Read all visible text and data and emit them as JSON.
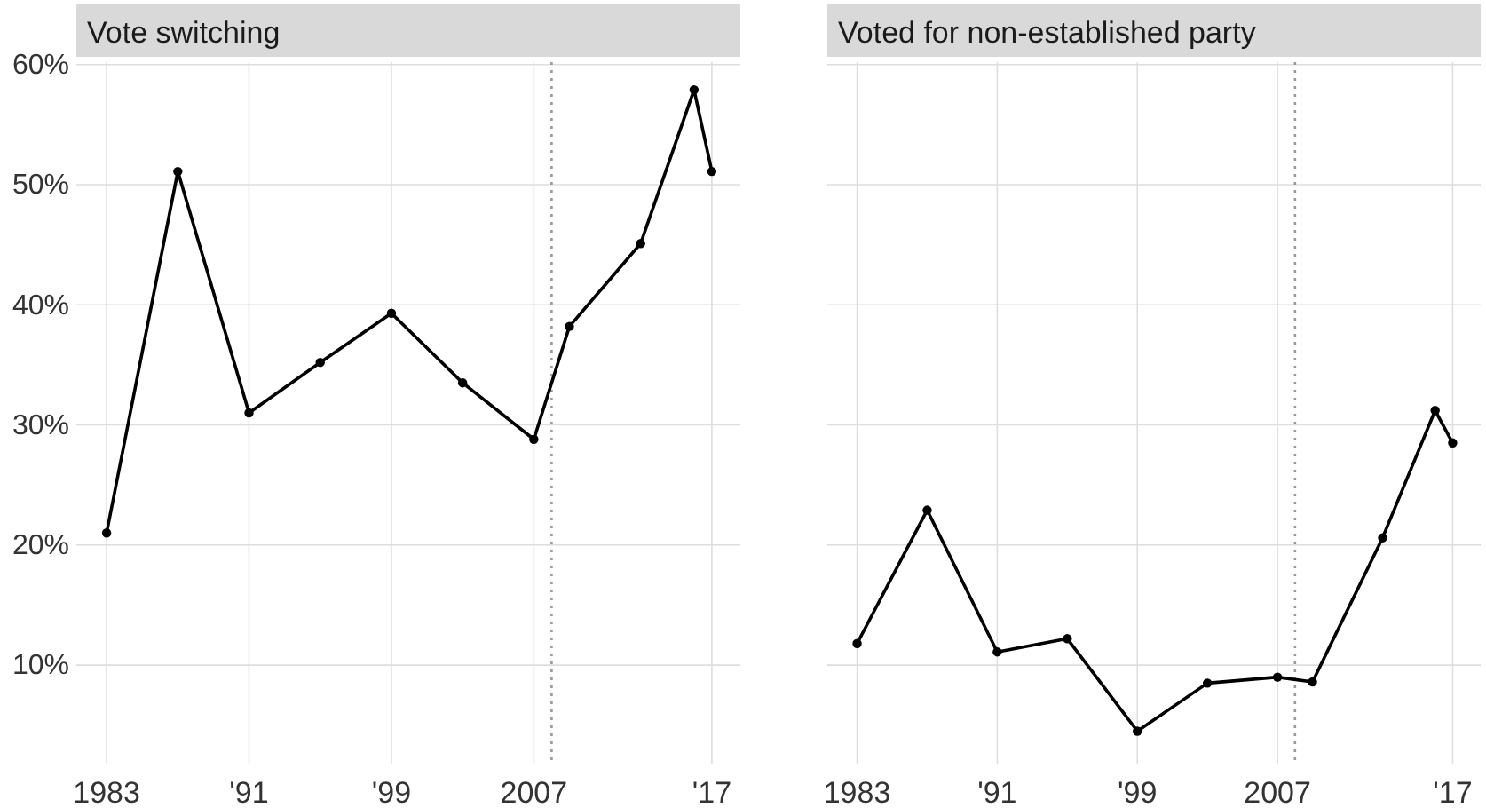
{
  "chart_data": [
    {
      "type": "line",
      "title": "Vote switching",
      "x": [
        1983,
        1987,
        1991,
        1995,
        1999,
        2003,
        2007,
        2009,
        2013,
        2016,
        2017
      ],
      "series": [
        {
          "color": "#000000",
          "values": [
            21,
            51.1,
            31,
            35.2,
            39.3,
            33.5,
            28.8,
            38.2,
            45.1,
            57.9,
            51.1
          ]
        }
      ],
      "xlim": [
        1981.3,
        2018.6
      ],
      "xticks": [
        {
          "value": 1983,
          "label": "1983"
        },
        {
          "value": 1991,
          "label": "'91"
        },
        {
          "value": 1999,
          "label": "'99"
        },
        {
          "value": 2007,
          "label": "2007"
        },
        {
          "value": 2017,
          "label": "'17"
        }
      ],
      "ylim": [
        1.8,
        60.2
      ],
      "yticks": [
        {
          "value": 10,
          "label": "10%"
        },
        {
          "value": 20,
          "label": "20%"
        },
        {
          "value": 30,
          "label": "30%"
        },
        {
          "value": 40,
          "label": "40%"
        },
        {
          "value": 50,
          "label": "50%"
        },
        {
          "value": 60,
          "label": "60%"
        }
      ],
      "ref_lines": [
        {
          "axis": "x",
          "value": 2008,
          "color": "#999999",
          "line_style": "dotted"
        }
      ],
      "grid": true,
      "marker": "circle",
      "line_style": "solid"
    },
    {
      "type": "line",
      "title": "Voted for non-established party",
      "x": [
        1983,
        1987,
        1991,
        1995,
        1999,
        2003,
        2007,
        2009,
        2013,
        2016,
        2017
      ],
      "series": [
        {
          "color": "#000000",
          "values": [
            11.8,
            22.9,
            11.1,
            12.2,
            4.5,
            8.5,
            9,
            8.6,
            20.6,
            31.2,
            28.5
          ]
        }
      ],
      "xlim": [
        1981.3,
        2018.6
      ],
      "xticks": [
        {
          "value": 1983,
          "label": "1983"
        },
        {
          "value": 1991,
          "label": "'91"
        },
        {
          "value": 1999,
          "label": "'99"
        },
        {
          "value": 2007,
          "label": "2007"
        },
        {
          "value": 2017,
          "label": "'17"
        }
      ],
      "ylim": [
        1.8,
        60.2
      ],
      "tick_labels": "x",
      "yticks": [
        10,
        20,
        30,
        40,
        50,
        60
      ],
      "ref_lines": [
        {
          "axis": "x",
          "value": 2008,
          "color": "#999999",
          "line_style": "dotted"
        }
      ],
      "grid": true,
      "marker": "circle",
      "line_style": "solid"
    }
  ]
}
